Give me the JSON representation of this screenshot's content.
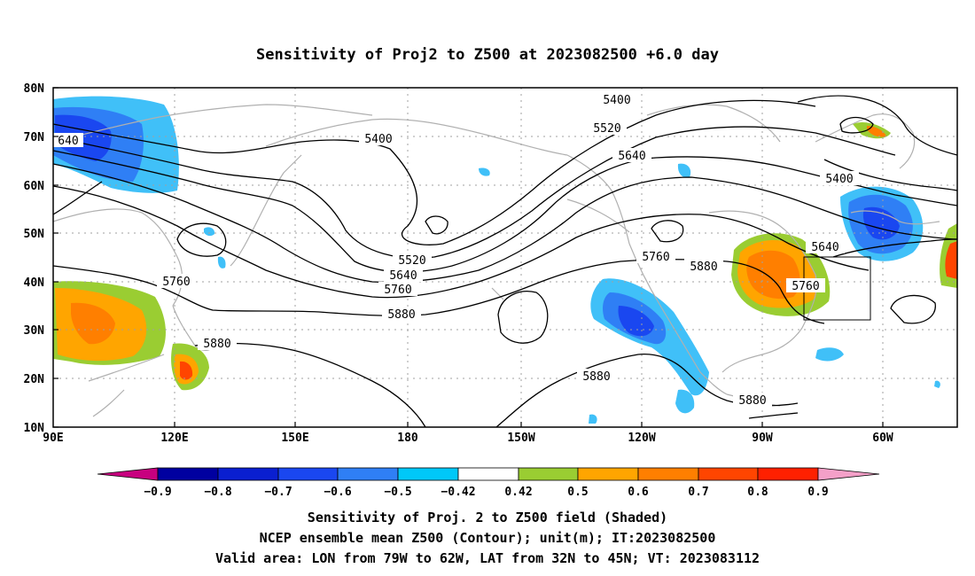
{
  "title": "Sensitivity of Proj2 to Z500 at 2023082500 +6.0 day",
  "axes": {
    "lon_ticks": [
      "90E",
      "120E",
      "150E",
      "180",
      "150W",
      "120W",
      "90W",
      "60W"
    ],
    "lat_ticks": [
      "80N",
      "70N",
      "60N",
      "50N",
      "40N",
      "30N",
      "20N",
      "10N"
    ]
  },
  "colorbar": {
    "labels": [
      "-0.9",
      "-0.8",
      "-0.7",
      "-0.6",
      "-0.5",
      "-0.42",
      "0.42",
      "0.5",
      "0.6",
      "0.7",
      "0.8",
      "0.9"
    ],
    "colors": [
      "#c8007f",
      "#0000a0",
      "#0a1fd0",
      "#1a47f0",
      "#2f7ff5",
      "#3fb0f8",
      "#00c8f8",
      "#ffffff",
      "#9acd32",
      "#ffa500",
      "#ff7f00",
      "#ff4500",
      "#ff2000",
      "#f4a0c8"
    ]
  },
  "contour_labels": [
    {
      "id": "c5400a",
      "text": "5400"
    },
    {
      "id": "c5400b",
      "text": "5400"
    },
    {
      "id": "c5400c",
      "text": "5400"
    },
    {
      "id": "c5520a",
      "text": "5520"
    },
    {
      "id": "c5520b",
      "text": "5520"
    },
    {
      "id": "c5640a",
      "text": "5640"
    },
    {
      "id": "c5640b",
      "text": "5640"
    },
    {
      "id": "c5640c",
      "text": "5640"
    },
    {
      "id": "c5640d",
      "text": "640"
    },
    {
      "id": "c5760a",
      "text": "5760"
    },
    {
      "id": "c5760b",
      "text": "5760"
    },
    {
      "id": "c5760c",
      "text": "5760"
    },
    {
      "id": "c5760d",
      "text": "5760"
    },
    {
      "id": "c5880a",
      "text": "5880"
    },
    {
      "id": "c5880b",
      "text": "5880"
    },
    {
      "id": "c5880c",
      "text": "5880"
    },
    {
      "id": "c5880d",
      "text": "5880"
    },
    {
      "id": "c5880e",
      "text": "5880"
    }
  ],
  "captions": {
    "line1": "Sensitivity of Proj. 2 to Z500 field (Shaded)",
    "line2": "NCEP ensemble mean Z500 (Contour); unit(m); IT:2023082500",
    "line3": "Valid area: LON from 79W to 62W, LAT from 32N to 45N; VT: 2023083112"
  }
}
